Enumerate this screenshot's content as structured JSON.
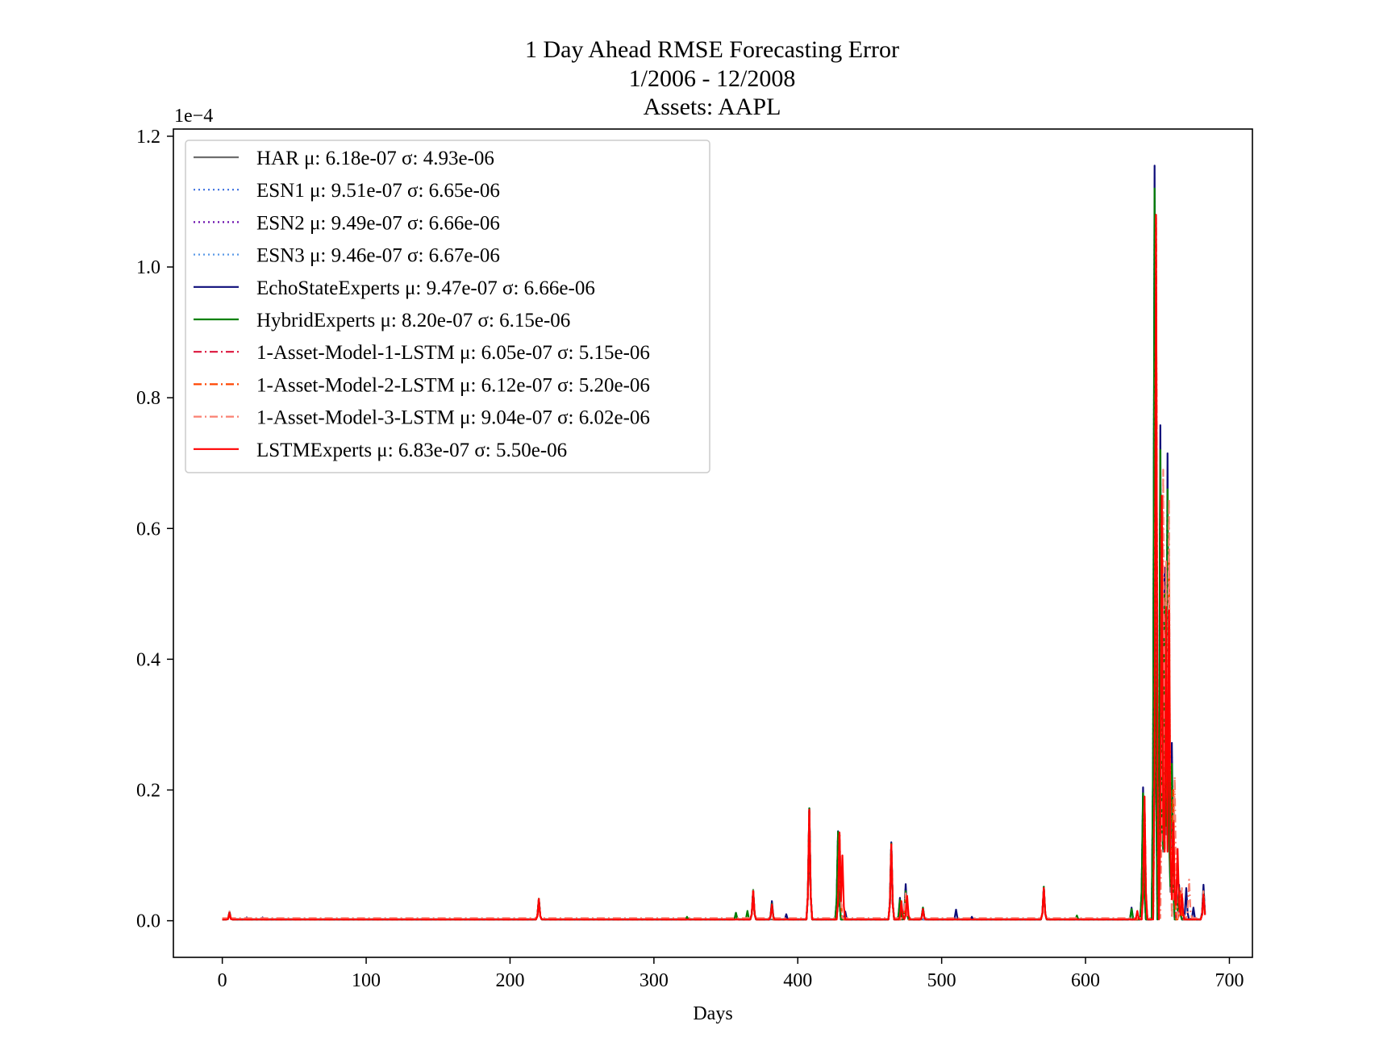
{
  "chart_data": {
    "type": "line",
    "title": [
      "1 Day Ahead RMSE Forecasting Error",
      "1/2006 - 12/2008",
      "Assets: AAPL"
    ],
    "xlabel": "Days",
    "ylabel": "",
    "y_offset_label": "1e−4",
    "y_scale_factor": 0.0001,
    "xlim": [
      -34,
      716
    ],
    "ylim": [
      -0.056,
      1.211
    ],
    "xticks": [
      0,
      100,
      200,
      300,
      400,
      500,
      600,
      700
    ],
    "yticks": [
      0.0,
      0.2,
      0.4,
      0.6,
      0.8,
      1.0,
      1.2
    ],
    "ytick_labels": [
      "0.0",
      "0.2",
      "0.4",
      "0.6",
      "0.8",
      "1.0",
      "1.2"
    ],
    "grid": false,
    "legend_position": "upper-left",
    "x": {
      "start": 0,
      "end": 683,
      "step": 1
    },
    "series": [
      {
        "name": "HAR μ: 6.18e-07 σ: 4.93e-06",
        "color": "#6e6e6e",
        "dash": "solid",
        "base": 0.002,
        "peaks": [
          [
            5,
            0.012
          ],
          [
            220,
            0.032
          ],
          [
            369,
            0.045
          ],
          [
            408,
            0.165
          ],
          [
            428,
            0.13
          ],
          [
            465,
            0.112
          ],
          [
            475,
            0.04
          ],
          [
            571,
            0.048
          ],
          [
            640,
            0.17
          ],
          [
            648,
            1.05
          ],
          [
            652,
            0.62
          ],
          [
            655,
            0.48
          ],
          [
            657,
            0.6
          ],
          [
            660,
            0.2
          ],
          [
            665,
            0.04
          ],
          [
            682,
            0.04
          ]
        ]
      },
      {
        "name": "ESN1 μ: 9.51e-07 σ: 6.65e-06",
        "color": "#3a6fe0",
        "dash": "dotted",
        "base": 0.002,
        "peaks": [
          [
            5,
            0.012
          ],
          [
            220,
            0.033
          ],
          [
            369,
            0.046
          ],
          [
            408,
            0.17
          ],
          [
            428,
            0.135
          ],
          [
            465,
            0.118
          ],
          [
            475,
            0.05
          ],
          [
            571,
            0.05
          ],
          [
            640,
            0.19
          ],
          [
            648,
            1.1
          ],
          [
            652,
            0.7
          ],
          [
            655,
            0.52
          ],
          [
            657,
            0.68
          ],
          [
            660,
            0.25
          ],
          [
            665,
            0.05
          ],
          [
            682,
            0.05
          ]
        ]
      },
      {
        "name": "ESN2 μ: 9.49e-07 σ: 6.66e-06",
        "color": "#6a0dad",
        "dash": "dotted",
        "base": 0.002,
        "peaks": [
          [
            5,
            0.012
          ],
          [
            220,
            0.033
          ],
          [
            369,
            0.046
          ],
          [
            408,
            0.17
          ],
          [
            428,
            0.135
          ],
          [
            465,
            0.118
          ],
          [
            475,
            0.05
          ],
          [
            571,
            0.05
          ],
          [
            640,
            0.19
          ],
          [
            648,
            1.1
          ],
          [
            652,
            0.7
          ],
          [
            655,
            0.52
          ],
          [
            657,
            0.68
          ],
          [
            660,
            0.25
          ],
          [
            665,
            0.05
          ],
          [
            682,
            0.05
          ]
        ]
      },
      {
        "name": "ESN3 μ: 9.46e-07 σ: 6.67e-06",
        "color": "#5a9ae8",
        "dash": "dotted",
        "base": 0.002,
        "peaks": [
          [
            5,
            0.012
          ],
          [
            220,
            0.033
          ],
          [
            369,
            0.046
          ],
          [
            408,
            0.17
          ],
          [
            428,
            0.135
          ],
          [
            465,
            0.118
          ],
          [
            475,
            0.05
          ],
          [
            571,
            0.05
          ],
          [
            640,
            0.19
          ],
          [
            648,
            1.1
          ],
          [
            652,
            0.7
          ],
          [
            655,
            0.52
          ],
          [
            657,
            0.68
          ],
          [
            660,
            0.25
          ],
          [
            665,
            0.05
          ],
          [
            682,
            0.05
          ]
        ]
      },
      {
        "name": "EchoStateExperts μ: 9.47e-07 σ: 6.66e-06",
        "color": "#0d0d7a",
        "dash": "solid",
        "base": 0.002,
        "peaks": [
          [
            5,
            0.014
          ],
          [
            17,
            0.005
          ],
          [
            28,
            0.005
          ],
          [
            220,
            0.034
          ],
          [
            357,
            0.012
          ],
          [
            369,
            0.047
          ],
          [
            382,
            0.03
          ],
          [
            392,
            0.01
          ],
          [
            408,
            0.172
          ],
          [
            428,
            0.137
          ],
          [
            433,
            0.014
          ],
          [
            465,
            0.12
          ],
          [
            471,
            0.035
          ],
          [
            475,
            0.056
          ],
          [
            487,
            0.02
          ],
          [
            510,
            0.017
          ],
          [
            521,
            0.006
          ],
          [
            571,
            0.052
          ],
          [
            632,
            0.02
          ],
          [
            640,
            0.204
          ],
          [
            648,
            1.155
          ],
          [
            652,
            0.758
          ],
          [
            655,
            0.54
          ],
          [
            657,
            0.715
          ],
          [
            660,
            0.272
          ],
          [
            665,
            0.055
          ],
          [
            670,
            0.05
          ],
          [
            675,
            0.02
          ],
          [
            682,
            0.055
          ]
        ]
      },
      {
        "name": "HybridExperts μ: 8.20e-07 σ: 6.15e-06",
        "color": "#008000",
        "dash": "solid",
        "base": 0.002,
        "peaks": [
          [
            5,
            0.013
          ],
          [
            220,
            0.034
          ],
          [
            323,
            0.006
          ],
          [
            357,
            0.012
          ],
          [
            365,
            0.015
          ],
          [
            369,
            0.047
          ],
          [
            382,
            0.026
          ],
          [
            408,
            0.172
          ],
          [
            428,
            0.136
          ],
          [
            465,
            0.118
          ],
          [
            471,
            0.032
          ],
          [
            475,
            0.045
          ],
          [
            487,
            0.02
          ],
          [
            571,
            0.052
          ],
          [
            594,
            0.008
          ],
          [
            632,
            0.018
          ],
          [
            640,
            0.195
          ],
          [
            648,
            1.12
          ],
          [
            652,
            0.72
          ],
          [
            655,
            0.5
          ],
          [
            657,
            0.66
          ],
          [
            660,
            0.24
          ],
          [
            665,
            0.05
          ],
          [
            682,
            0.045
          ]
        ]
      },
      {
        "name": "1-Asset-Model-1-LSTM μ: 6.05e-07 σ: 5.15e-06",
        "color": "#dc143c",
        "dash": "dashdot",
        "base": 0.002,
        "peaks": [
          [
            5,
            0.012
          ],
          [
            220,
            0.032
          ],
          [
            369,
            0.045
          ],
          [
            408,
            0.17
          ],
          [
            429,
            0.134
          ],
          [
            465,
            0.116
          ],
          [
            475,
            0.04
          ],
          [
            571,
            0.05
          ],
          [
            641,
            0.185
          ],
          [
            649,
            1.075
          ],
          [
            653,
            0.65
          ],
          [
            656,
            0.5
          ],
          [
            658,
            0.55
          ],
          [
            661,
            0.2
          ],
          [
            666,
            0.045
          ],
          [
            682,
            0.04
          ]
        ]
      },
      {
        "name": "1-Asset-Model-2-LSTM μ: 6.12e-07 σ: 5.20e-06",
        "color": "#ff4500",
        "dash": "dashdot",
        "base": 0.002,
        "peaks": [
          [
            5,
            0.012
          ],
          [
            220,
            0.032
          ],
          [
            369,
            0.045
          ],
          [
            408,
            0.17
          ],
          [
            429,
            0.134
          ],
          [
            465,
            0.116
          ],
          [
            475,
            0.04
          ],
          [
            571,
            0.05
          ],
          [
            641,
            0.185
          ],
          [
            649,
            1.075
          ],
          [
            653,
            0.65
          ],
          [
            656,
            0.5
          ],
          [
            658,
            0.56
          ],
          [
            661,
            0.2
          ],
          [
            666,
            0.045
          ],
          [
            682,
            0.04
          ]
        ]
      },
      {
        "name": "1-Asset-Model-3-LSTM μ: 9.04e-07 σ: 6.02e-06",
        "color": "#fa8072",
        "dash": "dashdot",
        "base": 0.004,
        "peaks": [
          [
            5,
            0.014
          ],
          [
            220,
            0.034
          ],
          [
            369,
            0.046
          ],
          [
            408,
            0.168
          ],
          [
            429,
            0.13
          ],
          [
            465,
            0.115
          ],
          [
            475,
            0.042
          ],
          [
            571,
            0.05
          ],
          [
            641,
            0.19
          ],
          [
            649,
            1.08
          ],
          [
            654,
            0.69
          ],
          [
            656,
            0.55
          ],
          [
            658,
            0.645
          ],
          [
            662,
            0.22
          ],
          [
            667,
            0.05
          ],
          [
            672,
            0.063
          ],
          [
            682,
            0.045
          ]
        ]
      },
      {
        "name": "LSTMExperts μ: 6.83e-07 σ: 5.50e-06",
        "color": "#ff0000",
        "dash": "solid",
        "base": 0.002,
        "peaks": [
          [
            5,
            0.012
          ],
          [
            220,
            0.033
          ],
          [
            369,
            0.045
          ],
          [
            382,
            0.025
          ],
          [
            408,
            0.17
          ],
          [
            429,
            0.135
          ],
          [
            431,
            0.1
          ],
          [
            465,
            0.117
          ],
          [
            472,
            0.03
          ],
          [
            476,
            0.038
          ],
          [
            487,
            0.018
          ],
          [
            571,
            0.05
          ],
          [
            636,
            0.015
          ],
          [
            641,
            0.19
          ],
          [
            649,
            1.08
          ],
          [
            653,
            0.65
          ],
          [
            656,
            0.48
          ],
          [
            658,
            0.475
          ],
          [
            661,
            0.15
          ],
          [
            664,
            0.11
          ],
          [
            667,
            0.04
          ],
          [
            682,
            0.04
          ]
        ]
      }
    ]
  }
}
